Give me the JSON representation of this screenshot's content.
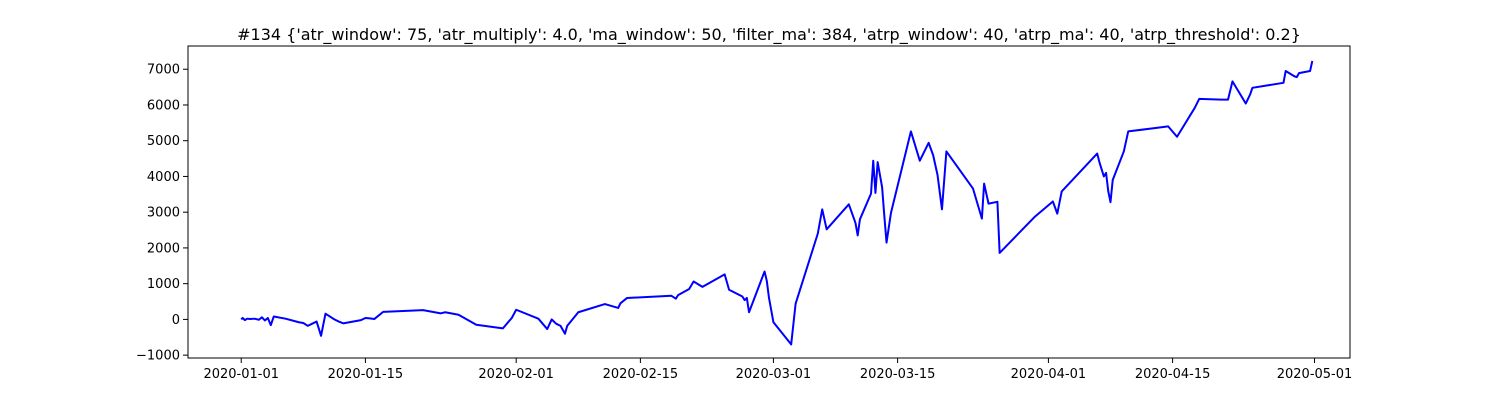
{
  "chart_data": {
    "type": "line",
    "title": "#134 {'atr_window': 75, 'atr_multiply': 4.0, 'ma_window': 50, 'filter_ma': 384, 'atrp_window': 40, 'atrp_ma': 40, 'atrp_threshold': 0.2}",
    "xlabel": "",
    "ylabel": "",
    "x_axis_type": "date",
    "xlim": [
      "2019-12-26",
      "2020-05-05"
    ],
    "ylim": [
      -1080,
      7650
    ],
    "x_ticks": [
      "2020-01-01",
      "2020-01-15",
      "2020-02-01",
      "2020-02-15",
      "2020-03-01",
      "2020-03-15",
      "2020-04-01",
      "2020-04-15",
      "2020-05-01"
    ],
    "y_ticks": [
      -1000,
      0,
      1000,
      2000,
      3000,
      4000,
      5000,
      6000,
      7000
    ],
    "y_tick_labels": [
      "−1000",
      "0",
      "1000",
      "2000",
      "3000",
      "4000",
      "5000",
      "6000",
      "7000"
    ],
    "grid": false,
    "series": [
      {
        "color": "#0000ff",
        "points": [
          [
            "2020-01-01T00:00",
            0
          ],
          [
            "2020-01-01T04:00",
            40
          ],
          [
            "2020-01-01T10:00",
            -20
          ],
          [
            "2020-01-01T16:00",
            20
          ],
          [
            "2020-01-02T00:00",
            10
          ],
          [
            "2020-01-02T12:00",
            20
          ],
          [
            "2020-01-03T00:00",
            -10
          ],
          [
            "2020-01-03T08:00",
            60
          ],
          [
            "2020-01-03T16:00",
            -30
          ],
          [
            "2020-01-04T00:00",
            40
          ],
          [
            "2020-01-04T08:00",
            -160
          ],
          [
            "2020-01-04T16:00",
            80
          ],
          [
            "2020-01-06T00:00",
            20
          ],
          [
            "2020-01-07T12:00",
            -80
          ],
          [
            "2020-01-08T00:00",
            -100
          ],
          [
            "2020-01-08T12:00",
            -180
          ],
          [
            "2020-01-09T00:00",
            -120
          ],
          [
            "2020-01-09T12:00",
            -60
          ],
          [
            "2020-01-10T00:00",
            -460
          ],
          [
            "2020-01-10T12:00",
            160
          ],
          [
            "2020-01-11T12:00",
            0
          ],
          [
            "2020-01-12T00:00",
            -60
          ],
          [
            "2020-01-12T12:00",
            -110
          ],
          [
            "2020-01-14T12:00",
            -20
          ],
          [
            "2020-01-15T00:00",
            40
          ],
          [
            "2020-01-15T12:00",
            30
          ],
          [
            "2020-01-16T00:00",
            10
          ],
          [
            "2020-01-17T00:00",
            210
          ],
          [
            "2020-01-21T12:00",
            260
          ],
          [
            "2020-01-23T12:00",
            170
          ],
          [
            "2020-01-24T00:00",
            200
          ],
          [
            "2020-01-25T12:00",
            130
          ],
          [
            "2020-01-27T12:00",
            -150
          ],
          [
            "2020-01-30T12:00",
            -250
          ],
          [
            "2020-01-31T12:00",
            40
          ],
          [
            "2020-02-01T00:00",
            270
          ],
          [
            "2020-02-03T12:00",
            20
          ],
          [
            "2020-02-04T12:00",
            -270
          ],
          [
            "2020-02-05T00:00",
            0
          ],
          [
            "2020-02-05T12:00",
            -120
          ],
          [
            "2020-02-06T00:00",
            -180
          ],
          [
            "2020-02-06T12:00",
            -400
          ],
          [
            "2020-02-06T18:00",
            -180
          ],
          [
            "2020-02-08T00:00",
            200
          ],
          [
            "2020-02-11T00:00",
            430
          ],
          [
            "2020-02-12T12:00",
            320
          ],
          [
            "2020-02-12T18:00",
            450
          ],
          [
            "2020-02-13T12:00",
            600
          ],
          [
            "2020-02-18T12:00",
            660
          ],
          [
            "2020-02-19T00:00",
            580
          ],
          [
            "2020-02-19T06:00",
            680
          ],
          [
            "2020-02-20T12:00",
            850
          ],
          [
            "2020-02-21T00:00",
            1060
          ],
          [
            "2020-02-22T00:00",
            910
          ],
          [
            "2020-02-24T12:00",
            1260
          ],
          [
            "2020-02-25T00:00",
            830
          ],
          [
            "2020-02-26T12:00",
            640
          ],
          [
            "2020-02-26T18:00",
            540
          ],
          [
            "2020-02-27T00:00",
            600
          ],
          [
            "2020-02-27T06:00",
            200
          ],
          [
            "2020-02-29T00:00",
            1340
          ],
          [
            "2020-02-29T06:00",
            1080
          ],
          [
            "2020-02-29T12:00",
            600
          ],
          [
            "2020-03-01T00:00",
            -80
          ],
          [
            "2020-03-03T00:00",
            -700
          ],
          [
            "2020-03-03T12:00",
            440
          ],
          [
            "2020-03-06T00:00",
            2400
          ],
          [
            "2020-03-06T12:00",
            3080
          ],
          [
            "2020-03-07T00:00",
            2520
          ],
          [
            "2020-03-09T12:00",
            3220
          ],
          [
            "2020-03-10T06:00",
            2700
          ],
          [
            "2020-03-10T12:00",
            2350
          ],
          [
            "2020-03-10T18:00",
            2800
          ],
          [
            "2020-03-12T00:00",
            3520
          ],
          [
            "2020-03-12T06:00",
            4440
          ],
          [
            "2020-03-12T12:00",
            3540
          ],
          [
            "2020-03-12T18:00",
            4400
          ],
          [
            "2020-03-13T06:00",
            3700
          ],
          [
            "2020-03-13T12:00",
            2900
          ],
          [
            "2020-03-13T18:00",
            2150
          ],
          [
            "2020-03-14T06:00",
            2980
          ],
          [
            "2020-03-16T12:00",
            5260
          ],
          [
            "2020-03-17T12:00",
            4440
          ],
          [
            "2020-03-18T12:00",
            4940
          ],
          [
            "2020-03-19T00:00",
            4600
          ],
          [
            "2020-03-19T12:00",
            4040
          ],
          [
            "2020-03-20T00:00",
            3080
          ],
          [
            "2020-03-20T12:00",
            4700
          ],
          [
            "2020-03-23T12:00",
            3660
          ],
          [
            "2020-03-24T12:00",
            2820
          ],
          [
            "2020-03-24T18:00",
            3800
          ],
          [
            "2020-03-25T06:00",
            3240
          ],
          [
            "2020-03-26T06:00",
            3290
          ],
          [
            "2020-03-26T12:00",
            1860
          ],
          [
            "2020-03-30T12:00",
            2880
          ],
          [
            "2020-04-01T12:00",
            3300
          ],
          [
            "2020-04-02T00:00",
            2960
          ],
          [
            "2020-04-02T12:00",
            3580
          ],
          [
            "2020-04-06T12:00",
            4640
          ],
          [
            "2020-04-06T18:00",
            4400
          ],
          [
            "2020-04-07T00:00",
            4200
          ],
          [
            "2020-04-07T06:00",
            4000
          ],
          [
            "2020-04-07T12:00",
            4100
          ],
          [
            "2020-04-07T18:00",
            3580
          ],
          [
            "2020-04-08T00:00",
            3280
          ],
          [
            "2020-04-08T06:00",
            3900
          ],
          [
            "2020-04-09T12:00",
            4700
          ],
          [
            "2020-04-10T00:00",
            5260
          ],
          [
            "2020-04-14T12:00",
            5400
          ],
          [
            "2020-04-15T12:00",
            5110
          ],
          [
            "2020-04-17T12:00",
            5920
          ],
          [
            "2020-04-18T00:00",
            6170
          ],
          [
            "2020-04-20T12:00",
            6150
          ],
          [
            "2020-04-21T06:00",
            6150
          ],
          [
            "2020-04-21T18:00",
            6660
          ],
          [
            "2020-04-23T06:00",
            6040
          ],
          [
            "2020-04-23T18:00",
            6300
          ],
          [
            "2020-04-24T00:00",
            6480
          ],
          [
            "2020-04-27T12:00",
            6620
          ],
          [
            "2020-04-27T18:00",
            6950
          ],
          [
            "2020-04-28T18:00",
            6800
          ],
          [
            "2020-04-29T00:00",
            6780
          ],
          [
            "2020-04-29T06:00",
            6890
          ],
          [
            "2020-04-30T12:00",
            6950
          ],
          [
            "2020-04-30T18:00",
            7230
          ]
        ]
      }
    ]
  }
}
